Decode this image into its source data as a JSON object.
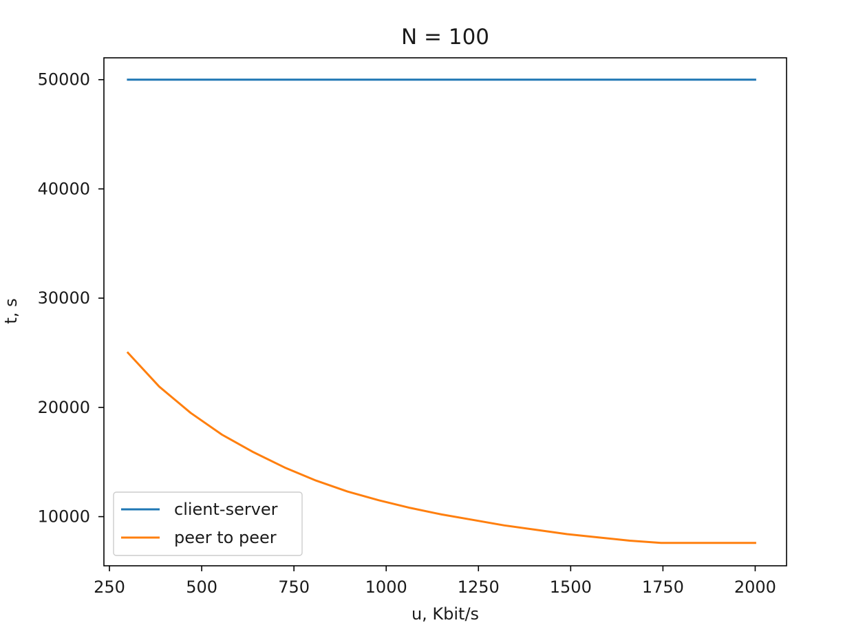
{
  "chart_data": {
    "type": "line",
    "title": "N = 100",
    "xlabel": "u, Kbit/s",
    "ylabel": "t, s",
    "xlim": [
      235,
      2085
    ],
    "ylim": [
      5500,
      52000
    ],
    "xticks": [
      250,
      500,
      750,
      1000,
      1250,
      1500,
      1750,
      2000
    ],
    "yticks": [
      10000,
      20000,
      30000,
      40000,
      50000
    ],
    "grid": false,
    "legend_position": "lower-left",
    "series": [
      {
        "name": "client-server",
        "color": "#1f77b4",
        "x": [
          300,
          2000
        ],
        "y": [
          50000,
          50000
        ]
      },
      {
        "name": "peer to peer",
        "color": "#ff7f0e",
        "x": [
          300,
          385,
          470,
          555,
          640,
          725,
          810,
          895,
          980,
          1065,
          1150,
          1235,
          1320,
          1405,
          1490,
          1575,
          1660,
          1745,
          1830,
          1915,
          2000
        ],
        "y": [
          25000,
          21900,
          19500,
          17500,
          15900,
          14500,
          13300,
          12300,
          11500,
          10800,
          10200,
          9700,
          9200,
          8800,
          8400,
          8100,
          7800,
          7600,
          7600,
          7600,
          7600
        ]
      }
    ]
  }
}
